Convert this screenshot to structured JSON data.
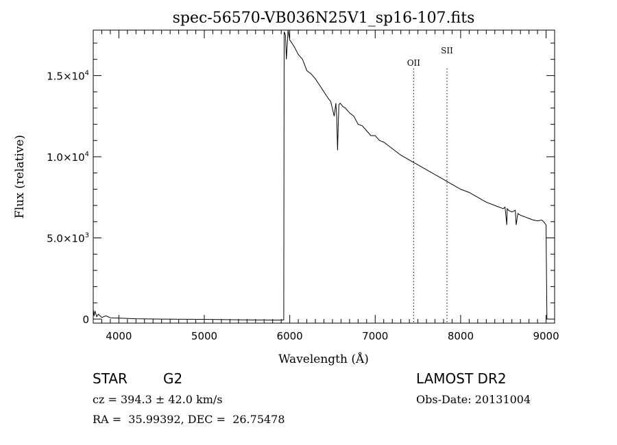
{
  "chart_data": {
    "type": "line",
    "title": "spec-56570-VB036N25V1_sp16-107.fits",
    "xlabel": "Wavelength (Å)",
    "ylabel": "Flux (relative)",
    "xlim": [
      3700,
      9100
    ],
    "ylim": [
      -250,
      17800
    ],
    "x_ticks": [
      4000,
      5000,
      6000,
      7000,
      8000,
      9000
    ],
    "x_tick_labels": [
      "4000",
      "5000",
      "6000",
      "7000",
      "8000",
      "9000"
    ],
    "y_ticks": [
      0,
      5000,
      10000,
      15000
    ],
    "y_tick_labels": [
      {
        "mantissa": "0",
        "exponent": ""
      },
      {
        "mantissa": "5.0×10",
        "exponent": "3"
      },
      {
        "mantissa": "1.0×10",
        "exponent": "4"
      },
      {
        "mantissa": "1.5×10",
        "exponent": "4"
      }
    ],
    "grid": false,
    "line_color": "#000000",
    "line_markers": [
      {
        "label": "OII",
        "x": 7450
      },
      {
        "label": "SII",
        "x": 7840
      }
    ],
    "series": [
      {
        "x": [
          3700,
          3710,
          3720,
          3740,
          3760,
          3800,
          3850,
          3900,
          4000,
          4200,
          4500,
          5000,
          5500,
          5800,
          5900,
          5930,
          5935,
          5950,
          5960,
          5980,
          6000,
          6050,
          6100,
          6150,
          6200,
          6250,
          6300,
          6350,
          6400,
          6450,
          6480,
          6520,
          6540,
          6550,
          6560,
          6565,
          6575,
          6590,
          6620,
          6650,
          6700,
          6750,
          6800,
          6850,
          6900,
          6950,
          7000,
          7050,
          7100,
          7150,
          7200,
          7300,
          7400,
          7500,
          7600,
          7700,
          7800,
          7900,
          8000,
          8100,
          8200,
          8300,
          8400,
          8450,
          8500,
          8520,
          8540,
          8545,
          8560,
          8600,
          8640,
          8650,
          8670,
          8700,
          8750,
          8800,
          8850,
          8900,
          8950,
          8980,
          9000,
          9005,
          9010
        ],
        "y": [
          600,
          200,
          500,
          150,
          300,
          100,
          200,
          80,
          60,
          20,
          0,
          -20,
          -50,
          -60,
          -60,
          -50,
          17700,
          17500,
          16000,
          17800,
          17200,
          16800,
          16300,
          16000,
          15300,
          15100,
          14800,
          14400,
          14000,
          13600,
          13400,
          12500,
          13300,
          12400,
          10400,
          11500,
          13200,
          13300,
          13100,
          13000,
          12700,
          12500,
          12000,
          11900,
          11600,
          11300,
          11300,
          11000,
          10900,
          10700,
          10500,
          10100,
          9800,
          9500,
          9200,
          8900,
          8600,
          8300,
          8000,
          7800,
          7500,
          7200,
          7000,
          6900,
          6800,
          6900,
          5800,
          6800,
          6700,
          6600,
          6700,
          5800,
          6500,
          6400,
          6300,
          6200,
          6100,
          6050,
          6100,
          5950,
          5800,
          2500,
          0
        ]
      }
    ]
  },
  "info": {
    "object_class": "STAR",
    "subclass": "G2",
    "survey": "LAMOST DR2",
    "redshift": "cz = 394.3 ± 42.0 km/s",
    "obs_date": "Obs-Date: 20131004",
    "coords": "RA =  35.99392, DEC =  26.75478"
  }
}
